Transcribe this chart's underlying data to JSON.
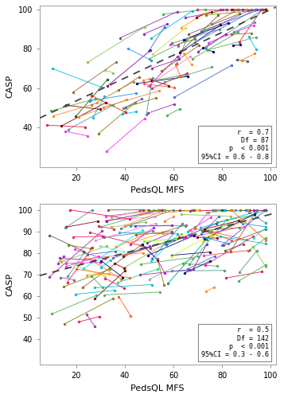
{
  "panel1": {
    "annotation": "r  = 0.7\nDf = 87\np  < 0.001\n95%CI = 0.6 - 0.8",
    "dashed_slope": 0.58,
    "dashed_intercept": 42,
    "ylim": [
      20,
      102
    ],
    "xlim": [
      5,
      102
    ],
    "yticks": [
      40,
      60,
      80,
      100
    ],
    "xticks": [
      20,
      40,
      60,
      80,
      100
    ],
    "ylabel": "CASP",
    "xlabel": "PedsQL MFS",
    "n_subjects": 90
  },
  "panel2": {
    "annotation": "r  = 0.5\nDf = 142\np  < 0.001\n95%CI = 0.3 - 0.6",
    "dashed_slope": 0.3,
    "dashed_intercept": 68,
    "ylim": [
      28,
      103
    ],
    "xlim": [
      5,
      102
    ],
    "yticks": [
      40,
      50,
      60,
      70,
      80,
      90,
      100
    ],
    "xticks": [
      20,
      40,
      60,
      80,
      100
    ],
    "ylabel": "CASP",
    "xlabel": "PedsQL MFS",
    "n_subjects": 144
  },
  "line_colors": [
    "#e6194b",
    "#3cb44b",
    "#4363d8",
    "#f58231",
    "#911eb4",
    "#00bcd4",
    "#f032e6",
    "#8bc34a",
    "#ff5722",
    "#469990",
    "#9c27b0",
    "#9a6324",
    "#e91e63",
    "#800000",
    "#4caf50",
    "#808000",
    "#ff9800",
    "#000075",
    "#607d8b",
    "#795548",
    "#e6194b",
    "#3cb44b",
    "#4363d8",
    "#f58231",
    "#911eb4",
    "#00bcd4",
    "#f032e6",
    "#8bc34a",
    "#469990",
    "#9c27b0",
    "#9a6324",
    "#800000",
    "#4caf50",
    "#808000",
    "#000075",
    "#e6194b",
    "#3cb44b",
    "#4363d8",
    "#f58231",
    "#911eb4",
    "#00bcd4",
    "#f032e6",
    "#8bc34a",
    "#469990",
    "#9c27b0",
    "#9a6324",
    "#800000",
    "#4caf50",
    "#808000",
    "#000075",
    "#e6194b",
    "#3cb44b",
    "#4363d8",
    "#f58231",
    "#911eb4",
    "#00bcd4",
    "#f032e6",
    "#8bc34a",
    "#469990",
    "#9c27b0",
    "#9a6324",
    "#800000",
    "#4caf50",
    "#808000",
    "#000075",
    "#ff7f00",
    "#984ea3",
    "#4daf4a",
    "#377eb8",
    "#a65628",
    "#f781bf",
    "#555555",
    "#e41a1c",
    "#b8860b",
    "#1e90ff",
    "#8b0000",
    "#006400",
    "#00008b",
    "#ff8c00",
    "#8b008b",
    "#2196f3",
    "#4caf50",
    "#ff5722",
    "#9c27b0",
    "#00bcd4",
    "#cddc39",
    "#ff9800",
    "#795548",
    "#607d8b",
    "#e91e63",
    "#3f51b5",
    "#009688",
    "#ffc107",
    "#673ab7",
    "#f44336",
    "#03a9f4",
    "#8bc34a",
    "#ff5722",
    "#9e9e9e",
    "#e040fb",
    "#69f0ae",
    "#40c4ff",
    "#ea80fc",
    "#ff6d00",
    "#00e676",
    "#d500f9",
    "#76ff03",
    "#ffea00",
    "#2979ff",
    "#ff1744",
    "#00e5ff",
    "#c6ff00",
    "#f50057",
    "#1de9b6",
    "#ff9100"
  ]
}
